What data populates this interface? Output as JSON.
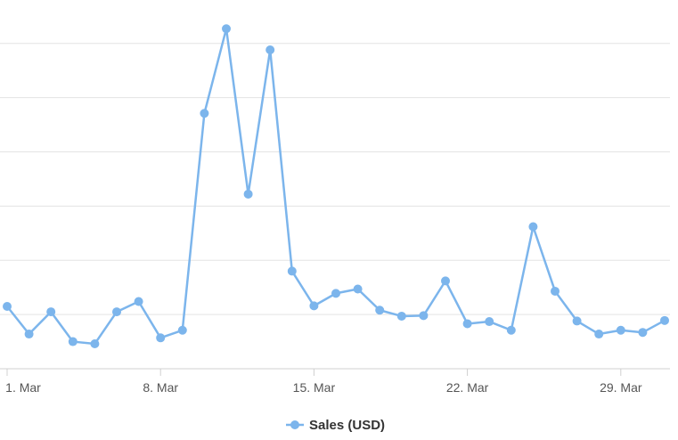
{
  "chart_data": {
    "type": "line",
    "x": [
      1,
      2,
      3,
      4,
      5,
      6,
      7,
      8,
      9,
      10,
      11,
      12,
      13,
      14,
      15,
      16,
      17,
      18,
      19,
      20,
      21,
      22,
      23,
      24,
      25,
      26,
      27,
      28,
      29,
      30,
      31
    ],
    "x_ticks": [
      {
        "x": 1,
        "label": "1. Mar"
      },
      {
        "x": 8,
        "label": "8. Mar"
      },
      {
        "x": 15,
        "label": "15. Mar"
      },
      {
        "x": 22,
        "label": "22. Mar"
      },
      {
        "x": 29,
        "label": "29. Mar"
      }
    ],
    "series": [
      {
        "name": "Sales (USD)",
        "color": "#7cb5ec",
        "values": [
          115,
          64,
          105,
          50,
          46,
          105,
          124,
          57,
          71,
          471,
          627,
          322,
          588,
          180,
          116,
          139,
          147,
          108,
          97,
          98,
          162,
          83,
          87,
          71,
          262,
          143,
          88,
          64,
          71,
          67,
          89
        ]
      }
    ],
    "ylim": [
      0,
      680
    ],
    "y_gridlines": [
      100,
      200,
      300,
      400,
      500,
      600
    ],
    "grid": true,
    "legend": "bottom-center",
    "title": "",
    "xlabel": "",
    "ylabel": ""
  }
}
